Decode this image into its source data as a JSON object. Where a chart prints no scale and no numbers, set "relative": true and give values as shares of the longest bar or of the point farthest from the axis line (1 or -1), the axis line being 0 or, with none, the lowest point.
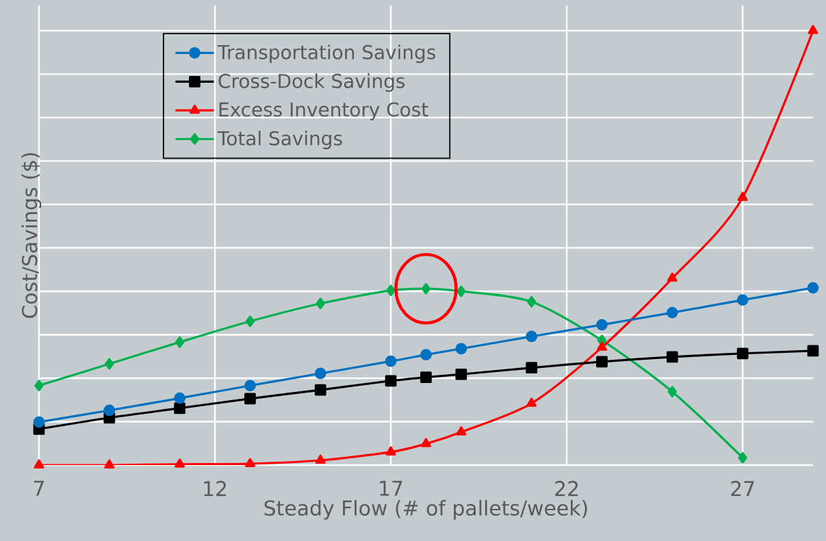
{
  "chart_data": {
    "type": "line",
    "xlabel": "Steady Flow (# of pallets/week)",
    "ylabel": "Cost/Savings ($)",
    "x": [
      7,
      9,
      11,
      13,
      15,
      17,
      18,
      19,
      21,
      23,
      25,
      27,
      29
    ],
    "xlim": [
      7,
      29
    ],
    "xticks": [
      7,
      12,
      17,
      22,
      27
    ],
    "relative": true,
    "grid": true,
    "legend": "top left",
    "line_style": "solid",
    "series": [
      {
        "name": "Transportation Savings",
        "color": "#0070c0",
        "marker": "circle",
        "values": [
          0.099,
          0.126,
          0.154,
          0.183,
          0.211,
          0.239,
          0.254,
          0.268,
          0.296,
          0.323,
          0.351,
          0.38,
          0.408
        ]
      },
      {
        "name": "Cross-Dock Savings",
        "color": "#000000",
        "marker": "square",
        "values": [
          0.083,
          0.109,
          0.131,
          0.153,
          0.173,
          0.194,
          0.202,
          0.209,
          0.224,
          0.238,
          0.249,
          0.257,
          0.263
        ]
      },
      {
        "name": "Excess Inventory Cost",
        "color": "#ff0000",
        "marker": "triangle",
        "values": [
          0,
          0,
          0.002,
          0.003,
          0.011,
          0.03,
          0.049,
          0.076,
          0.142,
          0.271,
          0.43,
          0.616,
          1
        ]
      },
      {
        "name": "Total Savings",
        "color": "#00b050",
        "marker": "diamond",
        "values": [
          0.183,
          0.233,
          0.283,
          0.331,
          0.372,
          0.402,
          0.406,
          0.4,
          0.376,
          0.287,
          0.169,
          0.017,
          null
        ]
      }
    ]
  }
}
